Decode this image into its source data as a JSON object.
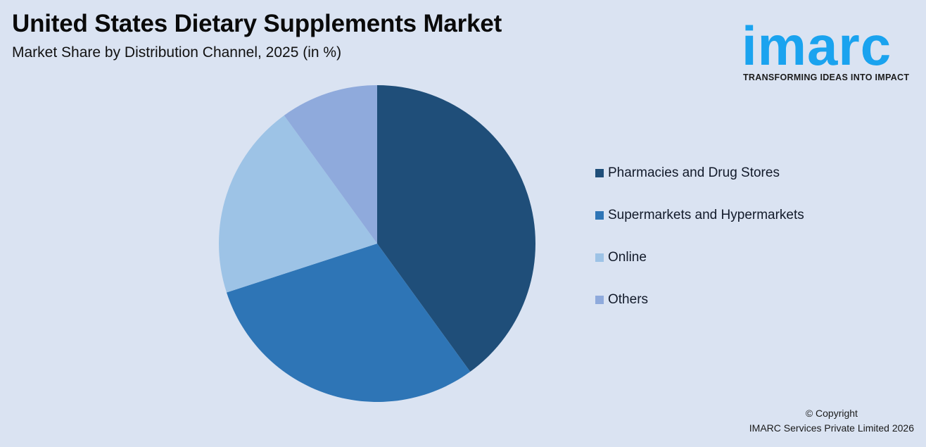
{
  "header": {
    "title": "United States Dietary Supplements Market",
    "subtitle": "Market Share by Distribution Channel, 2025 (in %)"
  },
  "logo": {
    "word": "imarc",
    "tagline": "TRANSFORMING IDEAS INTO IMPACT",
    "color": "#1aa3ef"
  },
  "footer": {
    "line1": "© Copyright",
    "line2": "IMARC Services Private Limited 2026"
  },
  "chart_data": {
    "type": "pie",
    "title": "United States Dietary Supplements Market",
    "subtitle": "Market Share by Distribution Channel, 2025 (in %)",
    "categories": [
      "Pharmacies and Drug Stores",
      "Supermarkets and Hypermarkets",
      "Online",
      "Others"
    ],
    "values": [
      40,
      30,
      20,
      10
    ],
    "colors": [
      "#1f4e79",
      "#2e75b6",
      "#9dc3e6",
      "#8faadc"
    ],
    "start_angle": "12 o'clock, clockwise",
    "legend_position": "right",
    "data_labels": false
  },
  "legend": {
    "items": [
      {
        "label": "Pharmacies and Drug Stores",
        "color": "#1f4e79"
      },
      {
        "label": "Supermarkets and Hypermarkets",
        "color": "#2e75b6"
      },
      {
        "label": "Online",
        "color": "#9dc3e6"
      },
      {
        "label": "Others",
        "color": "#8faadc"
      }
    ]
  }
}
